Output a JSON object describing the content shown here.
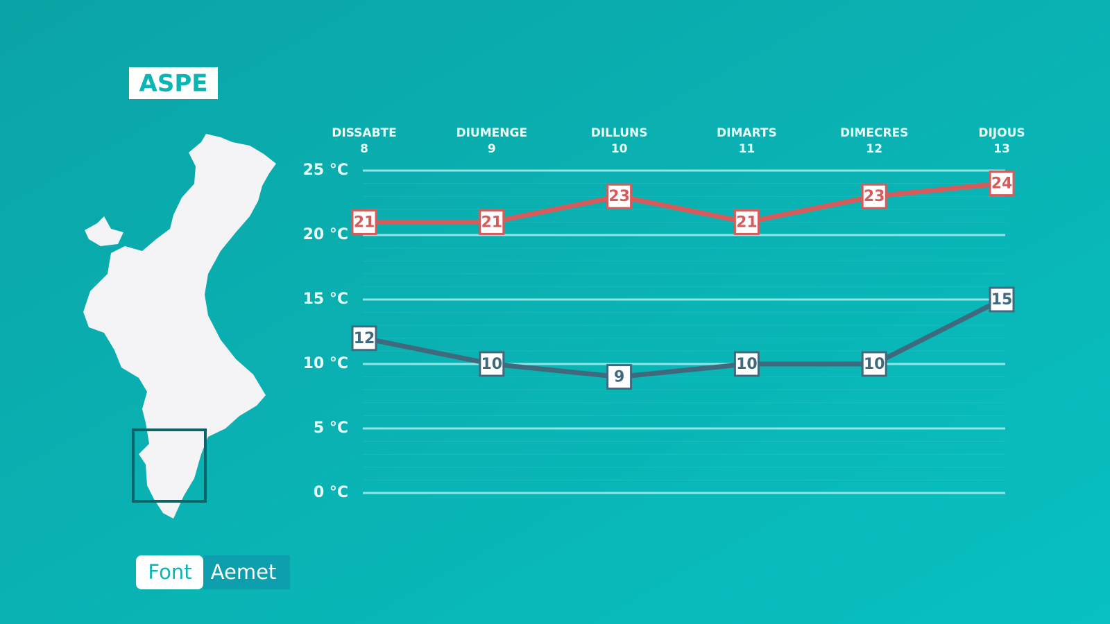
{
  "header": {
    "title": "ASPE"
  },
  "source": {
    "label": "Font",
    "value": "Aemet"
  },
  "chart_data": {
    "type": "line",
    "categories": [
      "DISSABTE",
      "DIUMENGE",
      "DILLUNS",
      "DIMARTS",
      "DIMECRES",
      "DIJOUS"
    ],
    "category_days": [
      8,
      9,
      10,
      11,
      12,
      13
    ],
    "series": [
      {
        "color": "#d65c5c",
        "values": [
          21,
          21,
          23,
          21,
          23,
          24
        ]
      },
      {
        "color": "#3f6a7e",
        "values": [
          12,
          10,
          9,
          10,
          10,
          15
        ]
      }
    ],
    "ylim": [
      0,
      25
    ],
    "yticks": [
      {
        "value": 0,
        "label": "0 °C"
      },
      {
        "value": 5,
        "label": "5 °C"
      },
      {
        "value": 10,
        "label": "10 °C"
      },
      {
        "value": 15,
        "label": "15 °C"
      },
      {
        "value": 20,
        "label": "20 °C"
      },
      {
        "value": 25,
        "label": "25 °C"
      }
    ],
    "grid": true
  }
}
